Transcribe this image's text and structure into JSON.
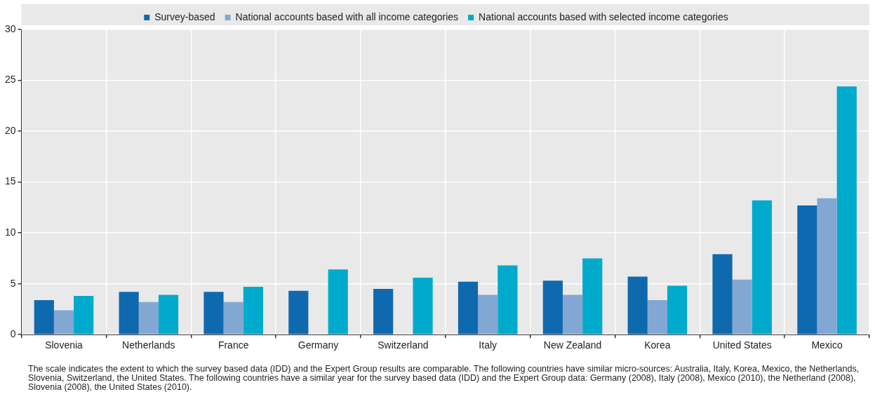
{
  "chart_data": {
    "type": "bar",
    "categories": [
      "Slovenia",
      "Netherlands",
      "France",
      "Germany",
      "Switzerland",
      "Italy",
      "New Zealand",
      "Korea",
      "United States",
      "Mexico"
    ],
    "series": [
      {
        "name": "Survey-based",
        "color": "#0f69af",
        "values": [
          3.4,
          4.2,
          4.2,
          4.3,
          4.5,
          5.2,
          5.3,
          5.7,
          7.9,
          12.7
        ]
      },
      {
        "name": "National accounts based with all income categories",
        "color": "#83a7d3",
        "values": [
          2.4,
          3.2,
          3.2,
          null,
          null,
          3.9,
          3.9,
          3.4,
          5.4,
          13.4
        ]
      },
      {
        "name": "National accounts based with selected income categories",
        "color": "#00aacc",
        "values": [
          3.8,
          3.9,
          4.7,
          6.4,
          5.6,
          6.8,
          7.5,
          4.8,
          13.2,
          24.4
        ]
      }
    ],
    "ylim": [
      0,
      30
    ],
    "yticks": [
      0,
      5,
      10,
      15,
      20,
      25,
      30
    ],
    "grid": true,
    "legend": "top",
    "annotations": [
      "The scale indicates the extent to which the survey based data (IDD) and the Expert Group results are comparable. The following countries have similar micro-sources: Australia, Italy, Korea, Mexico, the Netherlands, Slovenia, Switzerland, the United States. The following countries have a similar year for the survey based data (IDD) and the Expert Group data: Germany (2008), Italy (2008), Mexico (2010), the Netherland (2008), Slovenia (2008), the United States (2010)."
    ]
  }
}
